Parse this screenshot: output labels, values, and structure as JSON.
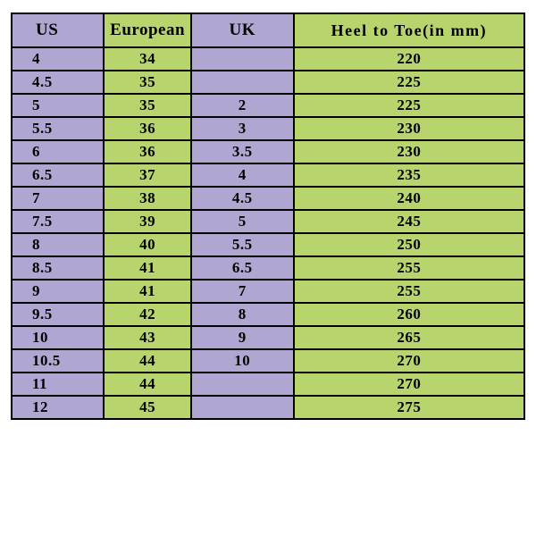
{
  "table": {
    "type": "table",
    "background_color": "#ffffff",
    "border_color": "#000000",
    "border_width": 2,
    "font_family": "Times New Roman",
    "header_fontsize": 19,
    "cell_fontsize": 17,
    "font_weight": "bold",
    "header_row_height": 36,
    "body_row_height": 24,
    "columns": [
      {
        "key": "us",
        "label": "US",
        "width_pct": 18,
        "bg": "#afa7d1",
        "align": "left"
      },
      {
        "key": "eu",
        "label": "European",
        "width_pct": 17,
        "bg": "#b8d46d",
        "align": "center"
      },
      {
        "key": "uk",
        "label": "UK",
        "width_pct": 20,
        "bg": "#afa7d1",
        "align": "center"
      },
      {
        "key": "heel",
        "label": "Heel to Toe(in mm)",
        "width_pct": 45,
        "bg": "#b8d46d",
        "align": "center"
      }
    ],
    "rows": [
      {
        "us": "4",
        "eu": "34",
        "uk": "",
        "heel": "220"
      },
      {
        "us": "4.5",
        "eu": "35",
        "uk": "",
        "heel": "225"
      },
      {
        "us": "5",
        "eu": "35",
        "uk": "2",
        "heel": "225"
      },
      {
        "us": "5.5",
        "eu": "36",
        "uk": "3",
        "heel": "230"
      },
      {
        "us": "6",
        "eu": "36",
        "uk": "3.5",
        "heel": "230"
      },
      {
        "us": "6.5",
        "eu": "37",
        "uk": "4",
        "heel": "235"
      },
      {
        "us": "7",
        "eu": "38",
        "uk": "4.5",
        "heel": "240"
      },
      {
        "us": "7.5",
        "eu": "39",
        "uk": "5",
        "heel": "245"
      },
      {
        "us": "8",
        "eu": "40",
        "uk": "5.5",
        "heel": "250"
      },
      {
        "us": "8.5",
        "eu": "41",
        "uk": "6.5",
        "heel": "255"
      },
      {
        "us": "9",
        "eu": "41",
        "uk": "7",
        "heel": "255"
      },
      {
        "us": "9.5",
        "eu": "42",
        "uk": "8",
        "heel": "260"
      },
      {
        "us": "10",
        "eu": "43",
        "uk": "9",
        "heel": "265"
      },
      {
        "us": "10.5",
        "eu": "44",
        "uk": "10",
        "heel": "270"
      },
      {
        "us": "11",
        "eu": "44",
        "uk": "",
        "heel": "270"
      },
      {
        "us": "12",
        "eu": "45",
        "uk": "",
        "heel": "275"
      }
    ]
  }
}
